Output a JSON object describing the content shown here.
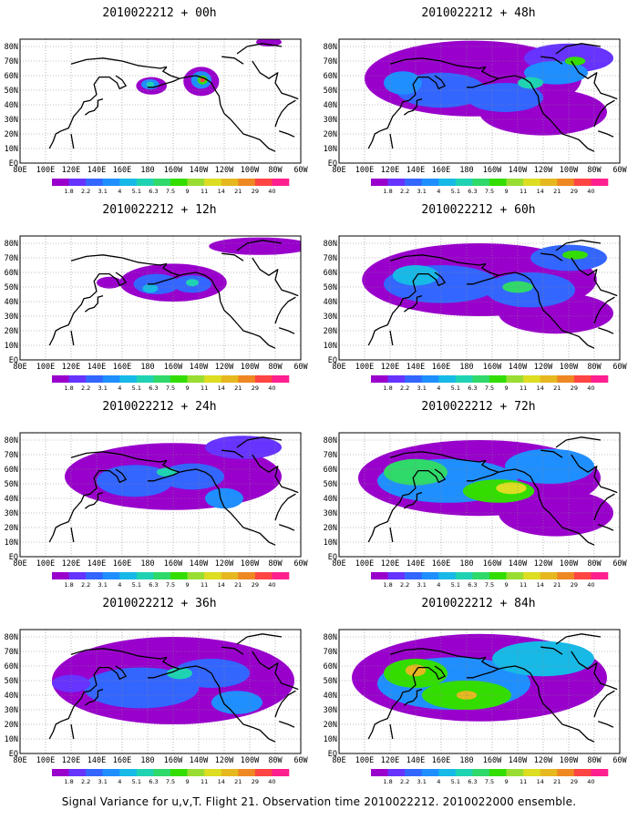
{
  "footer": "Signal Variance for u,v,T. Flight 21. Observation time 2010022212. 2010022000 ensemble.",
  "longitude_labels": [
    "80E",
    "100E",
    "120E",
    "140E",
    "160E",
    "180",
    "160W",
    "140W",
    "120W",
    "100W",
    "80W",
    "60W"
  ],
  "latitude_labels": [
    "80N",
    "70N",
    "60N",
    "50N",
    "40N",
    "30N",
    "20N",
    "10N",
    "EQ"
  ],
  "colorbar": {
    "labels": [
      "1.8",
      "2.2",
      "3.1",
      "4",
      "5.1",
      "6.3",
      "7.5",
      "9",
      "11",
      "14",
      "21",
      "29",
      "40"
    ],
    "colors": [
      "#9900cc",
      "#6633ff",
      "#3366ff",
      "#1f8fff",
      "#17b9e6",
      "#1fd3b2",
      "#2fd96a",
      "#33dd00",
      "#99dd33",
      "#dddd22",
      "#e6b820",
      "#ee8822",
      "#ff4444",
      "#ff1f8f"
    ]
  },
  "panels": [
    {
      "title": "2010022212 + 00h",
      "blobs": [
        {
          "lon": 183,
          "lat": 53,
          "rx": 12,
          "ry": 6,
          "lvl": 0
        },
        {
          "lon": 182,
          "lat": 54,
          "rx": 7,
          "ry": 3.5,
          "lvl": 3
        },
        {
          "lon": 182,
          "lat": 54,
          "rx": 3,
          "ry": 1.8,
          "lvl": 5
        },
        {
          "lon": 222,
          "lat": 56,
          "rx": 14,
          "ry": 10,
          "lvl": 0
        },
        {
          "lon": 222,
          "lat": 57,
          "rx": 8,
          "ry": 6,
          "lvl": 3
        },
        {
          "lon": 223,
          "lat": 57,
          "rx": 4,
          "ry": 3,
          "lvl": 7
        },
        {
          "lon": 223,
          "lat": 57,
          "rx": 2,
          "ry": 1.5,
          "lvl": 12
        },
        {
          "lon": 275,
          "lat": 83,
          "rx": 10,
          "ry": 3,
          "lvl": 0
        }
      ]
    },
    {
      "title": "2010022212 + 48h",
      "blobs": [
        {
          "lon": 185,
          "lat": 58,
          "rx": 85,
          "ry": 26,
          "lvl": 0
        },
        {
          "lon": 240,
          "lat": 35,
          "rx": 50,
          "ry": 16,
          "lvl": 0
        },
        {
          "lon": 260,
          "lat": 72,
          "rx": 35,
          "ry": 10,
          "lvl": 1
        },
        {
          "lon": 160,
          "lat": 50,
          "rx": 35,
          "ry": 12,
          "lvl": 2
        },
        {
          "lon": 210,
          "lat": 45,
          "rx": 30,
          "ry": 10,
          "lvl": 2
        },
        {
          "lon": 250,
          "lat": 62,
          "rx": 25,
          "ry": 8,
          "lvl": 3
        },
        {
          "lon": 130,
          "lat": 55,
          "rx": 15,
          "ry": 8,
          "lvl": 3
        },
        {
          "lon": 230,
          "lat": 55,
          "rx": 10,
          "ry": 4,
          "lvl": 5
        },
        {
          "lon": 265,
          "lat": 70,
          "rx": 8,
          "ry": 3,
          "lvl": 7
        }
      ]
    },
    {
      "title": "2010022212 + 12h",
      "blobs": [
        {
          "lon": 200,
          "lat": 53,
          "rx": 42,
          "ry": 13,
          "lvl": 0
        },
        {
          "lon": 150,
          "lat": 53,
          "rx": 10,
          "ry": 4,
          "lvl": 0
        },
        {
          "lon": 268,
          "lat": 78,
          "rx": 40,
          "ry": 6,
          "lvl": 0
        },
        {
          "lon": 187,
          "lat": 52,
          "rx": 18,
          "ry": 7,
          "lvl": 2
        },
        {
          "lon": 215,
          "lat": 52,
          "rx": 15,
          "ry": 6,
          "lvl": 2
        },
        {
          "lon": 182,
          "lat": 49,
          "rx": 6,
          "ry": 3,
          "lvl": 4
        },
        {
          "lon": 215,
          "lat": 53,
          "rx": 5,
          "ry": 2.5,
          "lvl": 5
        }
      ]
    },
    {
      "title": "2010022212 + 60h",
      "blobs": [
        {
          "lon": 190,
          "lat": 55,
          "rx": 92,
          "ry": 25,
          "lvl": 0
        },
        {
          "lon": 250,
          "lat": 32,
          "rx": 45,
          "ry": 14,
          "lvl": 0
        },
        {
          "lon": 160,
          "lat": 52,
          "rx": 45,
          "ry": 13,
          "lvl": 2
        },
        {
          "lon": 230,
          "lat": 48,
          "rx": 35,
          "ry": 12,
          "lvl": 2
        },
        {
          "lon": 260,
          "lat": 70,
          "rx": 30,
          "ry": 9,
          "lvl": 2
        },
        {
          "lon": 140,
          "lat": 58,
          "rx": 18,
          "ry": 7,
          "lvl": 4
        },
        {
          "lon": 220,
          "lat": 50,
          "rx": 12,
          "ry": 4,
          "lvl": 6
        },
        {
          "lon": 265,
          "lat": 72,
          "rx": 10,
          "ry": 3,
          "lvl": 7
        }
      ]
    },
    {
      "title": "2010022212 + 24h",
      "blobs": [
        {
          "lon": 200,
          "lat": 55,
          "rx": 85,
          "ry": 23,
          "lvl": 0
        },
        {
          "lon": 255,
          "lat": 75,
          "rx": 30,
          "ry": 8,
          "lvl": 1
        },
        {
          "lon": 170,
          "lat": 52,
          "rx": 30,
          "ry": 11,
          "lvl": 2
        },
        {
          "lon": 215,
          "lat": 55,
          "rx": 25,
          "ry": 9,
          "lvl": 2
        },
        {
          "lon": 240,
          "lat": 40,
          "rx": 15,
          "ry": 7,
          "lvl": 3
        },
        {
          "lon": 195,
          "lat": 58,
          "rx": 8,
          "ry": 3,
          "lvl": 5
        }
      ]
    },
    {
      "title": "2010022212 + 72h",
      "blobs": [
        {
          "lon": 190,
          "lat": 54,
          "rx": 95,
          "ry": 26,
          "lvl": 0
        },
        {
          "lon": 250,
          "lat": 30,
          "rx": 45,
          "ry": 16,
          "lvl": 0
        },
        {
          "lon": 165,
          "lat": 52,
          "rx": 55,
          "ry": 15,
          "lvl": 3
        },
        {
          "lon": 245,
          "lat": 62,
          "rx": 35,
          "ry": 12,
          "lvl": 3
        },
        {
          "lon": 140,
          "lat": 58,
          "rx": 25,
          "ry": 9,
          "lvl": 6
        },
        {
          "lon": 205,
          "lat": 45,
          "rx": 28,
          "ry": 8,
          "lvl": 7
        },
        {
          "lon": 215,
          "lat": 47,
          "rx": 12,
          "ry": 4,
          "lvl": 9
        }
      ]
    },
    {
      "title": "2010022212 + 36h",
      "blobs": [
        {
          "lon": 200,
          "lat": 50,
          "rx": 95,
          "ry": 30,
          "lvl": 0
        },
        {
          "lon": 175,
          "lat": 45,
          "rx": 45,
          "ry": 14,
          "lvl": 2
        },
        {
          "lon": 230,
          "lat": 55,
          "rx": 30,
          "ry": 10,
          "lvl": 2
        },
        {
          "lon": 250,
          "lat": 35,
          "rx": 20,
          "ry": 8,
          "lvl": 3
        },
        {
          "lon": 120,
          "lat": 48,
          "rx": 15,
          "ry": 6,
          "lvl": 1
        },
        {
          "lon": 205,
          "lat": 55,
          "rx": 10,
          "ry": 4,
          "lvl": 5
        }
      ]
    },
    {
      "title": "2010022212 + 84h",
      "blobs": [
        {
          "lon": 190,
          "lat": 52,
          "rx": 100,
          "ry": 30,
          "lvl": 0
        },
        {
          "lon": 170,
          "lat": 48,
          "rx": 60,
          "ry": 18,
          "lvl": 3
        },
        {
          "lon": 240,
          "lat": 65,
          "rx": 40,
          "ry": 12,
          "lvl": 4
        },
        {
          "lon": 140,
          "lat": 55,
          "rx": 25,
          "ry": 10,
          "lvl": 7
        },
        {
          "lon": 180,
          "lat": 40,
          "rx": 35,
          "ry": 10,
          "lvl": 7
        },
        {
          "lon": 140,
          "lat": 57,
          "rx": 8,
          "ry": 4,
          "lvl": 10
        },
        {
          "lon": 180,
          "lat": 40,
          "rx": 8,
          "ry": 3,
          "lvl": 10
        }
      ]
    }
  ]
}
